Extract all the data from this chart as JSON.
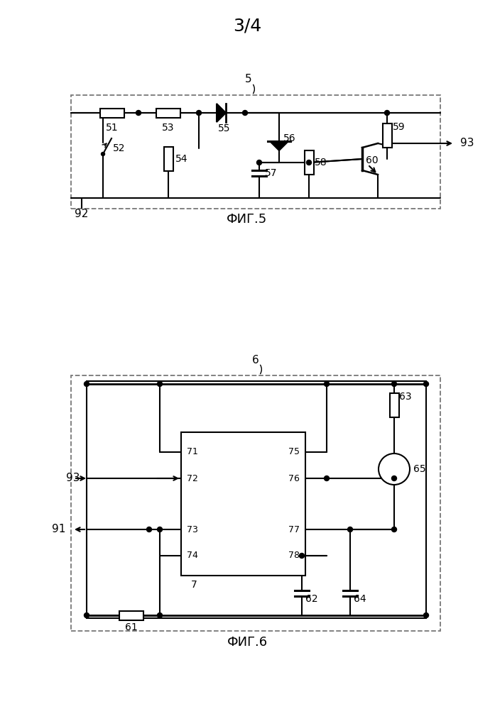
{
  "title": "3/4",
  "fig5_label": "ФИГ.5",
  "fig6_label": "ФИГ.6",
  "bg_color": "#ffffff"
}
